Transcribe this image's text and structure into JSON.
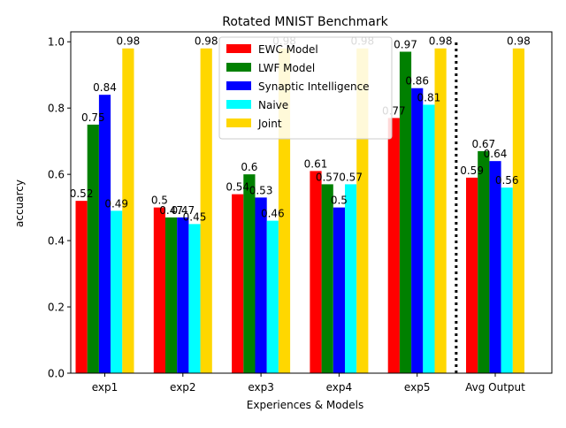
{
  "chart_data": {
    "type": "bar",
    "title": "Rotated MNIST Benchmark",
    "xlabel": "Experiences & Models",
    "ylabel": "accuarcy",
    "ylim": [
      0,
      1.03
    ],
    "yticks": [
      "0.0",
      "0.2",
      "0.4",
      "0.6",
      "0.8",
      "1.0"
    ],
    "categories": [
      "exp1",
      "exp2",
      "exp3",
      "exp4",
      "exp5",
      "Avg Output"
    ],
    "legend_position": "top-center",
    "grid": false,
    "separator_between": [
      "exp5",
      "Avg Output"
    ],
    "series": [
      {
        "name": "EWC Model",
        "color": "#ff0000",
        "values": [
          0.52,
          0.5,
          0.54,
          0.61,
          0.77,
          0.59
        ]
      },
      {
        "name": "LWF Model",
        "color": "#008000",
        "values": [
          0.75,
          0.47,
          0.6,
          0.57,
          0.97,
          0.67
        ]
      },
      {
        "name": "Synaptic Intelligence",
        "color": "#0000ff",
        "values": [
          0.84,
          0.47,
          0.53,
          0.5,
          0.86,
          0.64
        ]
      },
      {
        "name": "Naive",
        "color": "#00ffff",
        "values": [
          0.49,
          0.45,
          0.46,
          0.57,
          0.81,
          0.56
        ]
      },
      {
        "name": "Joint",
        "color": "#ffd700",
        "values": [
          0.98,
          0.98,
          0.98,
          0.98,
          0.98,
          0.98
        ]
      }
    ]
  }
}
